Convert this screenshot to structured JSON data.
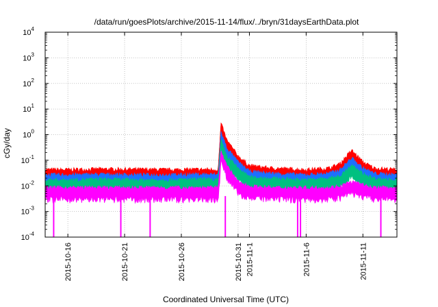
{
  "chart_data": {
    "type": "line",
    "title": "/data/run/goesPlots/archive/2015-11-14/flux/../bryn/31daysEarthData.plot",
    "xlabel": "Coordinated Universal Time (UTC)",
    "ylabel": "cGy/day",
    "yscale": "log",
    "ylim": [
      0.0001,
      10000
    ],
    "xlim": [
      "2015-10-14",
      "2015-11-14"
    ],
    "y_ticks": [
      {
        "value": 0.0001,
        "base": "10",
        "exp": "-4"
      },
      {
        "value": 0.001,
        "base": "10",
        "exp": "-3"
      },
      {
        "value": 0.01,
        "base": "10",
        "exp": "-2"
      },
      {
        "value": 0.1,
        "base": "10",
        "exp": "-1"
      },
      {
        "value": 1,
        "base": "10",
        "exp": "0"
      },
      {
        "value": 10,
        "base": "10",
        "exp": "1"
      },
      {
        "value": 100,
        "base": "10",
        "exp": "2"
      },
      {
        "value": 1000,
        "base": "10",
        "exp": "3"
      },
      {
        "value": 10000,
        "base": "10",
        "exp": "4"
      }
    ],
    "x_ticks": [
      {
        "date": "2015-10-16",
        "label": "2015-10-16"
      },
      {
        "date": "2015-10-21",
        "label": "2015-10-21"
      },
      {
        "date": "2015-10-26",
        "label": "2015-10-26"
      },
      {
        "date": "2015-10-31",
        "label": "2015-10-31"
      },
      {
        "date": "2015-11-01",
        "label": "2015-11-1"
      },
      {
        "date": "2015-11-06",
        "label": "2015-11-6"
      },
      {
        "date": "2015-11-11",
        "label": "2015-11-11"
      }
    ],
    "grid": true,
    "series": [
      {
        "color": "#ff0000",
        "x": [
          "2015-10-14",
          "2015-10-16",
          "2015-10-19",
          "2015-10-22",
          "2015-10-25",
          "2015-10-28",
          "2015-10-29T06:00",
          "2015-10-29T12:00",
          "2015-10-30",
          "2015-10-31",
          "2015-11-01",
          "2015-11-03",
          "2015-11-06",
          "2015-11-08",
          "2015-11-09",
          "2015-11-10",
          "2015-11-11",
          "2015-11-12",
          "2015-11-14"
        ],
        "values": [
          0.035,
          0.035,
          0.037,
          0.036,
          0.035,
          0.036,
          0.035,
          2.2,
          0.5,
          0.12,
          0.05,
          0.04,
          0.035,
          0.04,
          0.06,
          0.2,
          0.07,
          0.04,
          0.035
        ]
      },
      {
        "color": "#1e6fff",
        "x": [
          "2015-10-14",
          "2015-10-16",
          "2015-10-19",
          "2015-10-22",
          "2015-10-25",
          "2015-10-28",
          "2015-10-29T06:00",
          "2015-10-29T12:00",
          "2015-10-30",
          "2015-10-31",
          "2015-11-01",
          "2015-11-03",
          "2015-11-06",
          "2015-11-08",
          "2015-11-09",
          "2015-11-10",
          "2015-11-11",
          "2015-11-12",
          "2015-11-14"
        ],
        "values": [
          0.022,
          0.022,
          0.023,
          0.022,
          0.022,
          0.023,
          0.022,
          1.0,
          0.25,
          0.07,
          0.03,
          0.025,
          0.022,
          0.025,
          0.035,
          0.1,
          0.04,
          0.025,
          0.022
        ]
      },
      {
        "color": "#00c080",
        "x": [
          "2015-10-14",
          "2015-10-16",
          "2015-10-19",
          "2015-10-22",
          "2015-10-25",
          "2015-10-28",
          "2015-10-29T06:00",
          "2015-10-29T12:00",
          "2015-10-30",
          "2015-10-31",
          "2015-11-01",
          "2015-11-03",
          "2015-11-06",
          "2015-11-08",
          "2015-11-09",
          "2015-11-10",
          "2015-11-11",
          "2015-11-12",
          "2015-11-14"
        ],
        "values": [
          0.014,
          0.014,
          0.015,
          0.014,
          0.014,
          0.015,
          0.014,
          0.5,
          0.12,
          0.04,
          0.018,
          0.016,
          0.014,
          0.016,
          0.02,
          0.05,
          0.025,
          0.016,
          0.014
        ]
      },
      {
        "color": "#ff00ff",
        "x": [
          "2015-10-14",
          "2015-10-16",
          "2015-10-19",
          "2015-10-22",
          "2015-10-25",
          "2015-10-28",
          "2015-10-29T06:00",
          "2015-10-29T12:00",
          "2015-10-30",
          "2015-10-31",
          "2015-11-01",
          "2015-11-03",
          "2015-11-06",
          "2015-11-08",
          "2015-11-09",
          "2015-11-10",
          "2015-11-11",
          "2015-11-12",
          "2015-11-14"
        ],
        "values": [
          0.007,
          0.007,
          0.007,
          0.007,
          0.007,
          0.007,
          0.007,
          0.2,
          0.05,
          0.012,
          0.008,
          0.007,
          0.007,
          0.007,
          0.008,
          0.012,
          0.009,
          0.007,
          0.007
        ]
      }
    ],
    "dropouts": {
      "color": "#ff00ff",
      "value": 0.0001,
      "x": [
        "2015-10-14T18:00",
        "2015-10-20T16:00",
        "2015-10-23T06:00",
        "2015-10-29T21:00",
        "2015-11-05T06:00",
        "2015-11-05T12:00",
        "2015-11-12T14:00"
      ]
    }
  }
}
